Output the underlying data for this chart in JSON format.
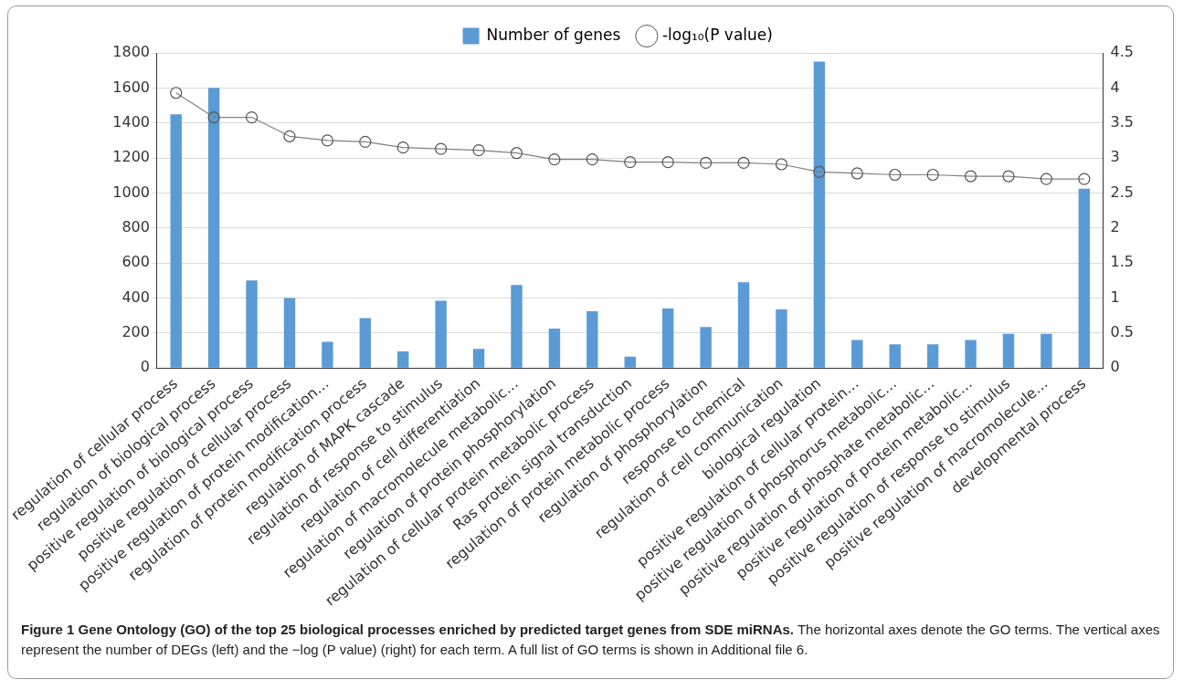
{
  "chart_data": {
    "type": "bar",
    "categories": [
      "regulation of cellular process",
      "regulation of biological process",
      "positive regulation of biological process",
      "positive regulation of cellular process",
      "positive regulation of protein modification…",
      "regulation of protein modification process",
      "regulation of MAPK cascade",
      "regulation of response to stimulus",
      "regulation of cell differentiation",
      "regulation of macromolecule metabolic…",
      "regulation of protein phosphorylation",
      "regulation of cellular protein metabolic process",
      "Ras protein signal transduction",
      "regulation of protein metabolic process",
      "regulation of phosphorylation",
      "response to chemical",
      "regulation of cell communication",
      "biological regulation",
      "positive regulation of cellular protein…",
      "positive regulation of phosphorus metabolic…",
      "positive regulation of phosphate metabolic…",
      "positive regulation of protein metabolic…",
      "positive regulation of response to stimulus",
      "positive regulation of macromolecule…",
      "developmental process"
    ],
    "series": [
      {
        "name": "Number of genes",
        "color": "#5b9bd5",
        "values": [
          1450,
          1600,
          500,
          400,
          150,
          285,
          95,
          385,
          110,
          475,
          225,
          325,
          65,
          340,
          235,
          490,
          335,
          1750,
          160,
          135,
          135,
          160,
          195,
          195,
          1025
        ]
      },
      {
        "name": "-log₁₀(P value)",
        "type": "line",
        "axis": "y2",
        "color": "#808080",
        "marker": "circle",
        "values": [
          3.93,
          3.58,
          3.58,
          3.31,
          3.25,
          3.23,
          3.15,
          3.13,
          3.11,
          3.07,
          2.98,
          2.98,
          2.94,
          2.94,
          2.93,
          2.93,
          2.91,
          2.8,
          2.78,
          2.76,
          2.76,
          2.74,
          2.74,
          2.7,
          2.7
        ]
      }
    ],
    "ylim": [
      0,
      1800
    ],
    "yticks": [
      0,
      200,
      400,
      600,
      800,
      1000,
      1200,
      1400,
      1600,
      1800
    ],
    "y2lim": [
      0,
      4.5
    ],
    "y2ticks": [
      0,
      0.5,
      1,
      1.5,
      2,
      2.5,
      3,
      3.5,
      4,
      4.5
    ],
    "grid": "y",
    "legend": "top",
    "annotations": [
      "Figure 1  Gene Ontology (GO) of the top 25 biological processes enriched by predicted target genes from SDE miRNAs.",
      "The horizontal axes denote the GO terms. The vertical axes represent the number of DEGs (left) and the −log (P value) (right) for each term. A full list of GO terms is shown in Additional file 6."
    ]
  }
}
